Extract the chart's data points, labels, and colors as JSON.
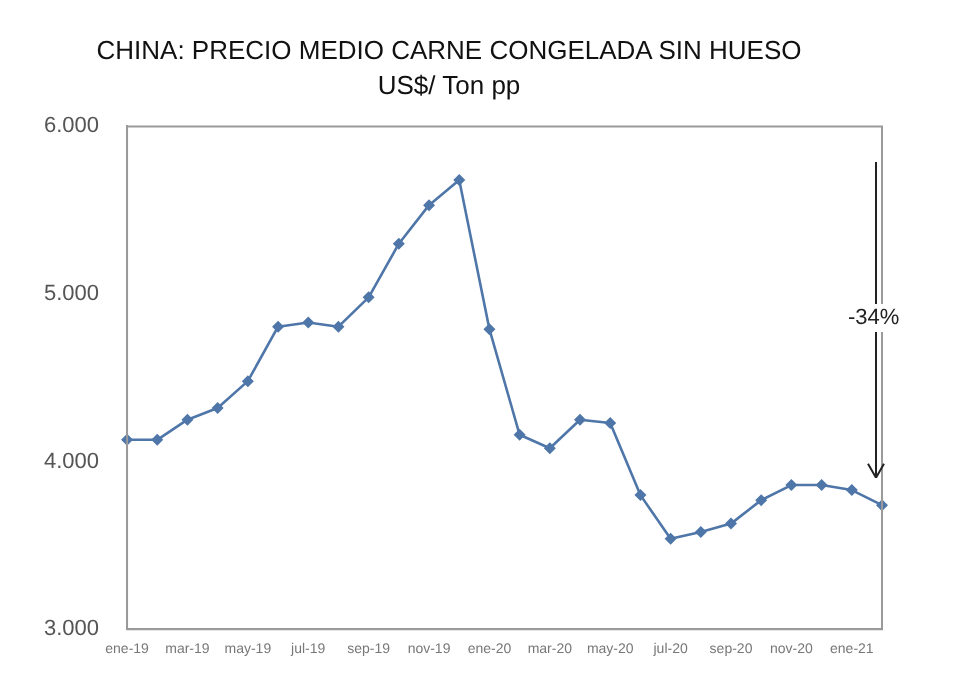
{
  "chart_data": {
    "type": "line",
    "title": "CHINA: PRECIO MEDIO CARNE CONGELADA SIN HUESO",
    "subtitle": "US$/ Ton pp",
    "categories": [
      "ene-19",
      null,
      "mar-19",
      null,
      "may-19",
      null,
      "jul-19",
      null,
      "sep-19",
      null,
      "nov-19",
      null,
      "ene-20",
      null,
      "mar-20",
      null,
      "may-20",
      null,
      "jul-20",
      null,
      "sep-20",
      null,
      "nov-20",
      null,
      "ene-21",
      null
    ],
    "series": [
      {
        "color": "#4f76a8",
        "values": [
          4130,
          4130,
          4250,
          4320,
          4480,
          4805,
          4830,
          4805,
          4980,
          5300,
          5530,
          5680,
          4790,
          4160,
          4080,
          4250,
          4230,
          3800,
          3540,
          3580,
          3630,
          3770,
          3860,
          3860,
          3830,
          3740
        ]
      }
    ],
    "ylim": [
      3000,
      6000
    ],
    "yticks": [
      {
        "value": 3000,
        "label": "3.000"
      },
      {
        "value": 4000,
        "label": "4.000"
      },
      {
        "value": 5000,
        "label": "5.000"
      },
      {
        "value": 6000,
        "label": "6.000"
      }
    ],
    "grid": false,
    "legend": false,
    "marker": "diamond",
    "line_style": "solid",
    "annotations": [
      "-34%"
    ]
  }
}
